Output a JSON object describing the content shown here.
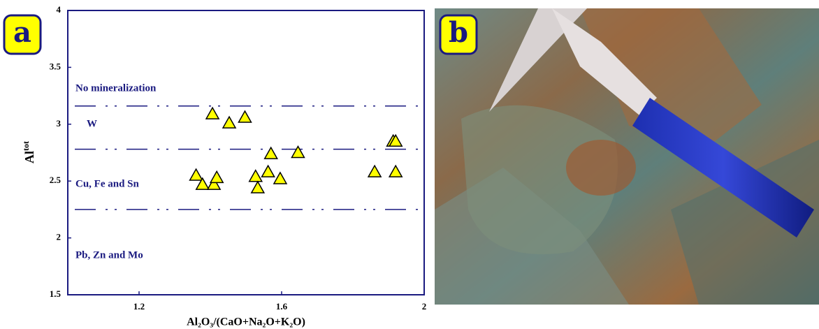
{
  "chart_data": {
    "type": "scatter",
    "panel_label": "a",
    "x_label": "Al₂O₃/(CaO+Na₂O+K₂O)",
    "y_label": {
      "base": "Al",
      "sup": "tot"
    },
    "x": [
      1.36,
      1.378,
      1.41,
      1.418,
      1.406,
      1.453,
      1.497,
      1.527,
      1.533,
      1.562,
      1.57,
      1.596,
      1.646,
      1.861,
      1.913,
      1.92,
      1.92
    ],
    "values": [
      2.55,
      2.47,
      2.47,
      2.53,
      3.09,
      3.01,
      3.06,
      2.54,
      2.44,
      2.58,
      2.74,
      2.52,
      2.75,
      2.58,
      2.85,
      2.85,
      2.58
    ],
    "color": "#ffff00",
    "xlim": [
      1,
      2
    ],
    "xticks": [
      1.2,
      1.6,
      2
    ],
    "ylim": [
      1.5,
      4
    ],
    "yticks": [
      1.5,
      2,
      2.5,
      3,
      3.5,
      4
    ],
    "hlines": [
      3.16,
      2.78,
      2.25
    ],
    "regions": [
      "No mineralization",
      "W",
      "Cu, Fe and Sn",
      "Pb, Zn and Mo"
    ]
  },
  "photo": {
    "panel_label": "b"
  }
}
